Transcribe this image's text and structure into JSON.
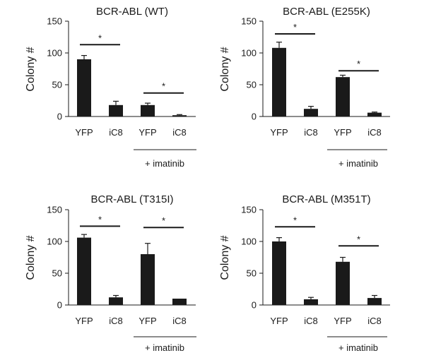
{
  "colors": {
    "bar": "#1a1a1a",
    "axis": "#1a1a1a",
    "background": "#ffffff"
  },
  "chart_data": [
    {
      "type": "bar",
      "title": "BCR-ABL (WT)",
      "ylabel": "Colony #",
      "xlabel": "",
      "ylim": [
        0,
        150
      ],
      "yticks": [
        0,
        50,
        100,
        150
      ],
      "categories": [
        "YFP",
        "iC8",
        "YFP",
        "iC8"
      ],
      "values": [
        90,
        18,
        18,
        2
      ],
      "errors": [
        6,
        6,
        3,
        1
      ],
      "treatment_label": "+ imatinib",
      "significance": [
        {
          "from": 0,
          "to": 1,
          "label": "*",
          "y": 113
        },
        {
          "from": 2,
          "to": 3,
          "label": "*",
          "y": 37
        }
      ]
    },
    {
      "type": "bar",
      "title": "BCR-ABL (E255K)",
      "ylabel": "Colony #",
      "xlabel": "",
      "ylim": [
        0,
        150
      ],
      "yticks": [
        0,
        50,
        100,
        150
      ],
      "categories": [
        "YFP",
        "iC8",
        "YFP",
        "iC8"
      ],
      "values": [
        108,
        12,
        62,
        6
      ],
      "errors": [
        9,
        4,
        3,
        1
      ],
      "treatment_label": "+ imatinib",
      "significance": [
        {
          "from": 0,
          "to": 1,
          "label": "*",
          "y": 130
        },
        {
          "from": 2,
          "to": 3,
          "label": "*",
          "y": 72
        }
      ]
    },
    {
      "type": "bar",
      "title": "BCR-ABL (T315I)",
      "ylabel": "Colony #",
      "xlabel": "",
      "ylim": [
        0,
        150
      ],
      "yticks": [
        0,
        50,
        100,
        150
      ],
      "categories": [
        "YFP",
        "iC8",
        "YFP",
        "iC8"
      ],
      "values": [
        106,
        12,
        80,
        10
      ],
      "errors": [
        5,
        3,
        17,
        0
      ],
      "treatment_label": "+ imatinib",
      "significance": [
        {
          "from": 0,
          "to": 1,
          "label": "*",
          "y": 124
        },
        {
          "from": 2,
          "to": 3,
          "label": "*",
          "y": 122
        }
      ]
    },
    {
      "type": "bar",
      "title": "BCR-ABL (M351T)",
      "ylabel": "Colony #",
      "xlabel": "",
      "ylim": [
        0,
        150
      ],
      "yticks": [
        0,
        50,
        100,
        150
      ],
      "categories": [
        "YFP",
        "iC8",
        "YFP",
        "iC8"
      ],
      "values": [
        100,
        9,
        68,
        11
      ],
      "errors": [
        6,
        3,
        7,
        4
      ],
      "treatment_label": "+ imatinib",
      "significance": [
        {
          "from": 0,
          "to": 1,
          "label": "*",
          "y": 123
        },
        {
          "from": 2,
          "to": 3,
          "label": "*",
          "y": 93
        }
      ]
    }
  ]
}
